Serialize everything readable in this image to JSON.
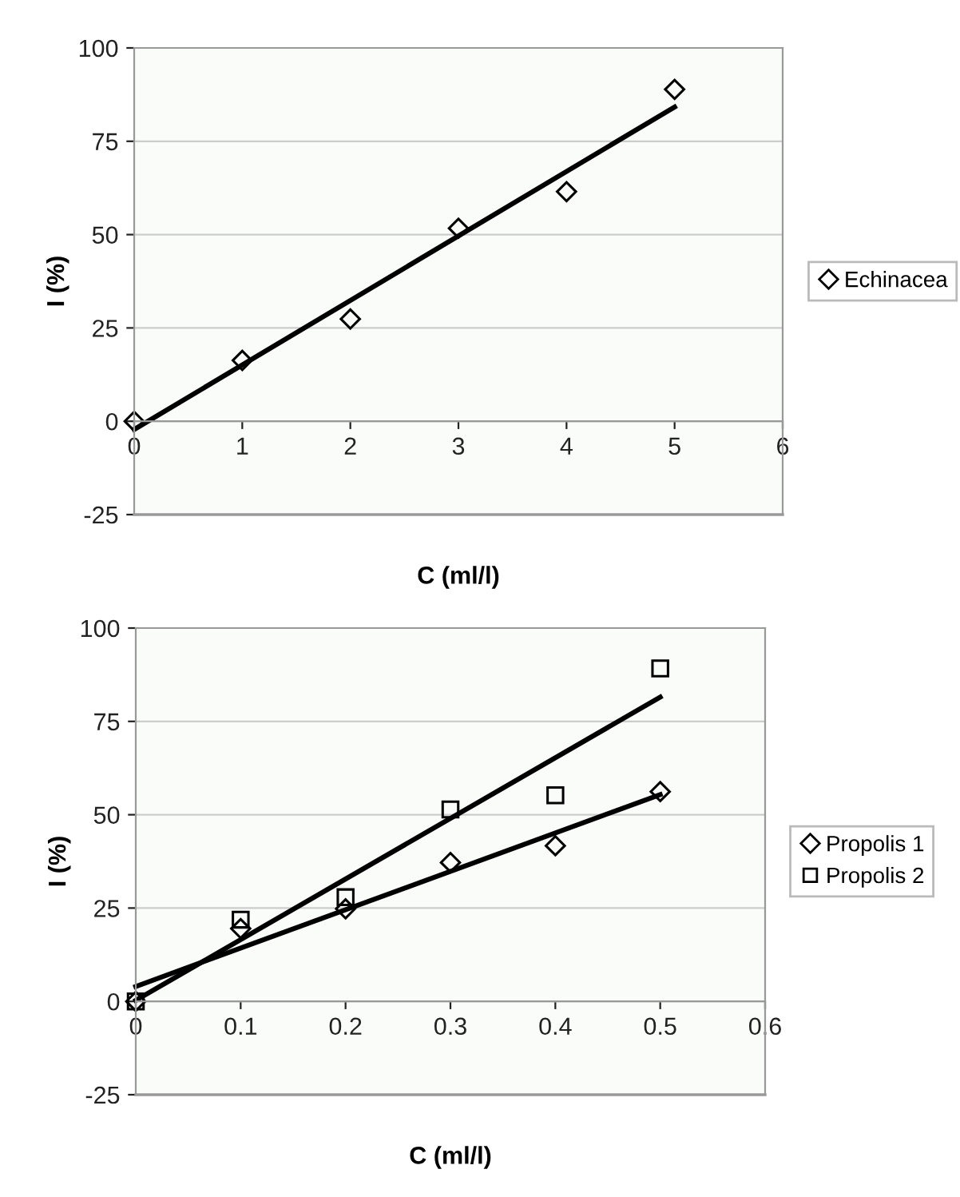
{
  "chart_data": [
    {
      "type": "scatter",
      "xlabel": "C (ml/l)",
      "ylabel": "I (%)",
      "xlim": [
        0,
        6
      ],
      "xticks": [
        0,
        1,
        2,
        3,
        4,
        5,
        6
      ],
      "ylim": [
        -25,
        100
      ],
      "yticks": [
        -25,
        0,
        25,
        50,
        75,
        100
      ],
      "grid": "y",
      "legend": "right",
      "series": [
        {
          "name": "Echinacea",
          "color": "#000000",
          "marker": "diamond",
          "x": [
            0,
            1,
            2,
            3,
            4,
            5
          ],
          "values": [
            0,
            16.3,
            27.4,
            51.7,
            61.5,
            88.9
          ]
        },
        {
          "type": "line",
          "color": "#000000",
          "marker": "none",
          "x": [
            0,
            5
          ],
          "values": [
            -2.2,
            84.2
          ]
        }
      ]
    },
    {
      "type": "scatter",
      "xlabel": "C (ml/l)",
      "ylabel": "I (%)",
      "xlim": [
        0,
        0.6
      ],
      "xticks": [
        0,
        0.1,
        0.2,
        0.3,
        0.4,
        0.5,
        0.6
      ],
      "ylim": [
        -25,
        100
      ],
      "yticks": [
        -25,
        0,
        25,
        50,
        75,
        100
      ],
      "grid": "y",
      "legend": "right",
      "series": [
        {
          "name": "Propolis 1",
          "color": "#000000",
          "marker": "diamond",
          "x": [
            0,
            0.1,
            0.2,
            0.3,
            0.4,
            0.5
          ],
          "values": [
            0,
            19.5,
            24.8,
            37.2,
            41.7,
            56.2
          ]
        },
        {
          "name": "Propolis 2",
          "color": "#000000",
          "marker": "square",
          "x": [
            0,
            0.1,
            0.2,
            0.3,
            0.4,
            0.5
          ],
          "values": [
            0,
            21.9,
            27.9,
            51.4,
            55.2,
            89.2
          ]
        },
        {
          "type": "line",
          "color": "#000000",
          "marker": "none",
          "x": [
            0,
            0.5
          ],
          "values": [
            4,
            55.4
          ]
        },
        {
          "type": "line",
          "color": "#000000",
          "marker": "none",
          "x": [
            0,
            0.5
          ],
          "values": [
            0.3,
            81.5
          ]
        }
      ]
    }
  ]
}
